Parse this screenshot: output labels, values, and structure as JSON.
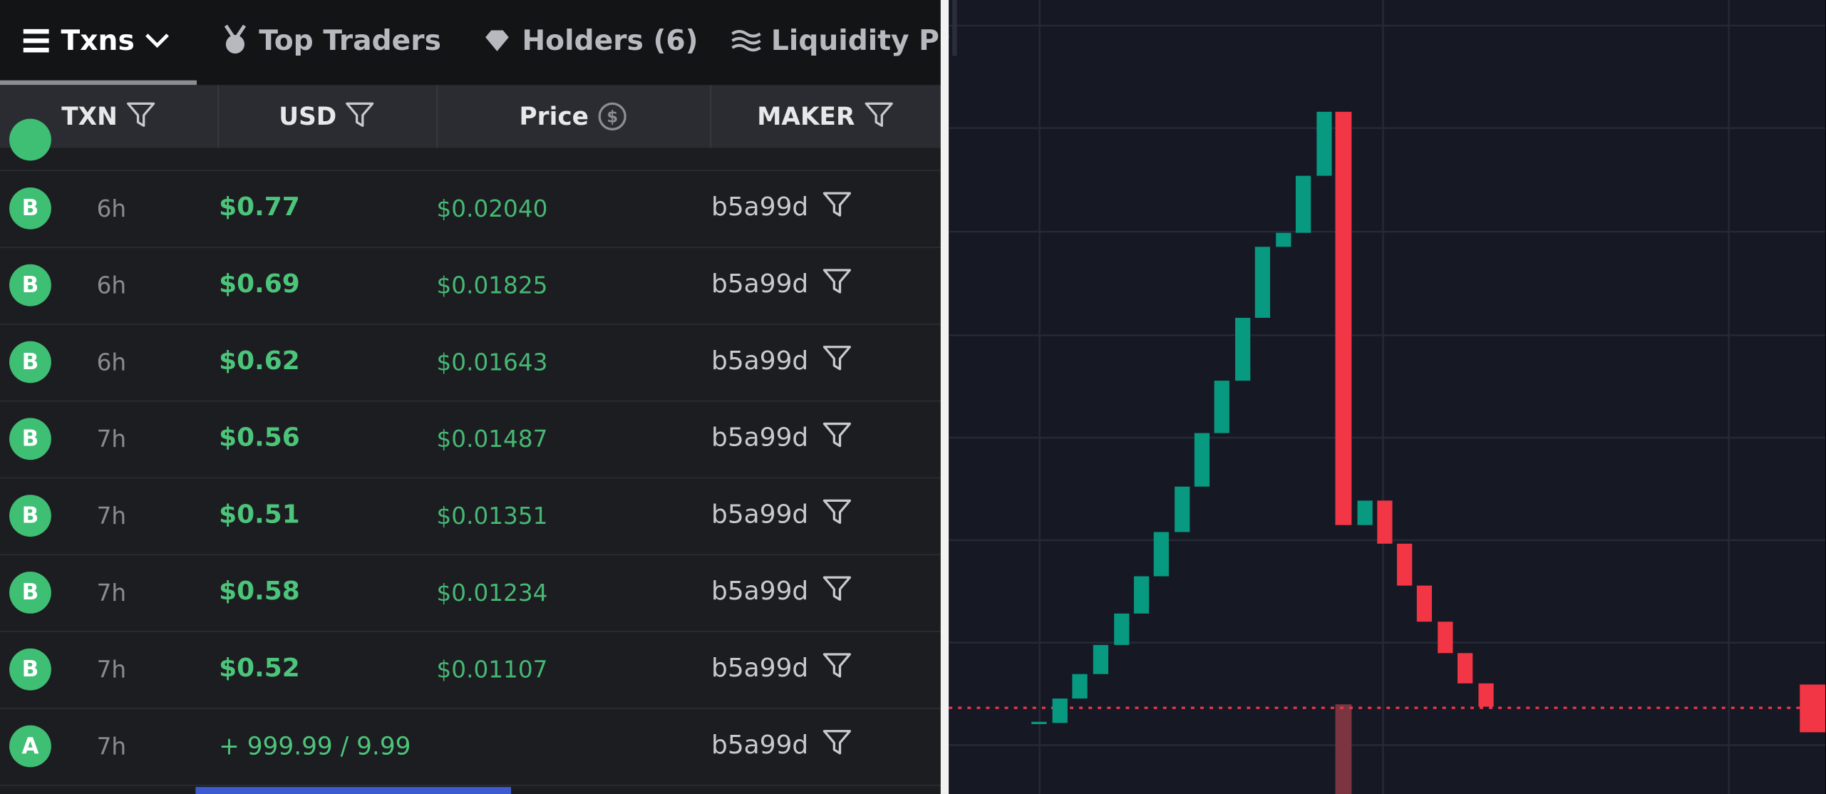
{
  "tabs": [
    "Txns",
    "Top Traders",
    "Holders (6)",
    "Liquidity Pr"
  ],
  "table": {
    "headers": [
      "TXN",
      "USD",
      "Price",
      "MAKER"
    ],
    "rows": [
      [
        "B",
        "6h",
        "$0.77",
        "$0.02040",
        "b5a99d"
      ],
      [
        "B",
        "6h",
        "$0.69",
        "$0.01825",
        "b5a99d"
      ],
      [
        "B",
        "6h",
        "$0.62",
        "$0.01643",
        "b5a99d"
      ],
      [
        "B",
        "7h",
        "$0.56",
        "$0.01487",
        "b5a99d"
      ],
      [
        "B",
        "7h",
        "$0.51",
        "$0.01351",
        "b5a99d"
      ],
      [
        "B",
        "7h",
        "$0.58",
        "$0.01234",
        "b5a99d"
      ],
      [
        "B",
        "7h",
        "$0.52",
        "$0.01107",
        "b5a99d"
      ],
      [
        "A",
        "7h",
        "+ 999.99 / 9.99",
        "",
        "b5a99d"
      ]
    ]
  }
}
